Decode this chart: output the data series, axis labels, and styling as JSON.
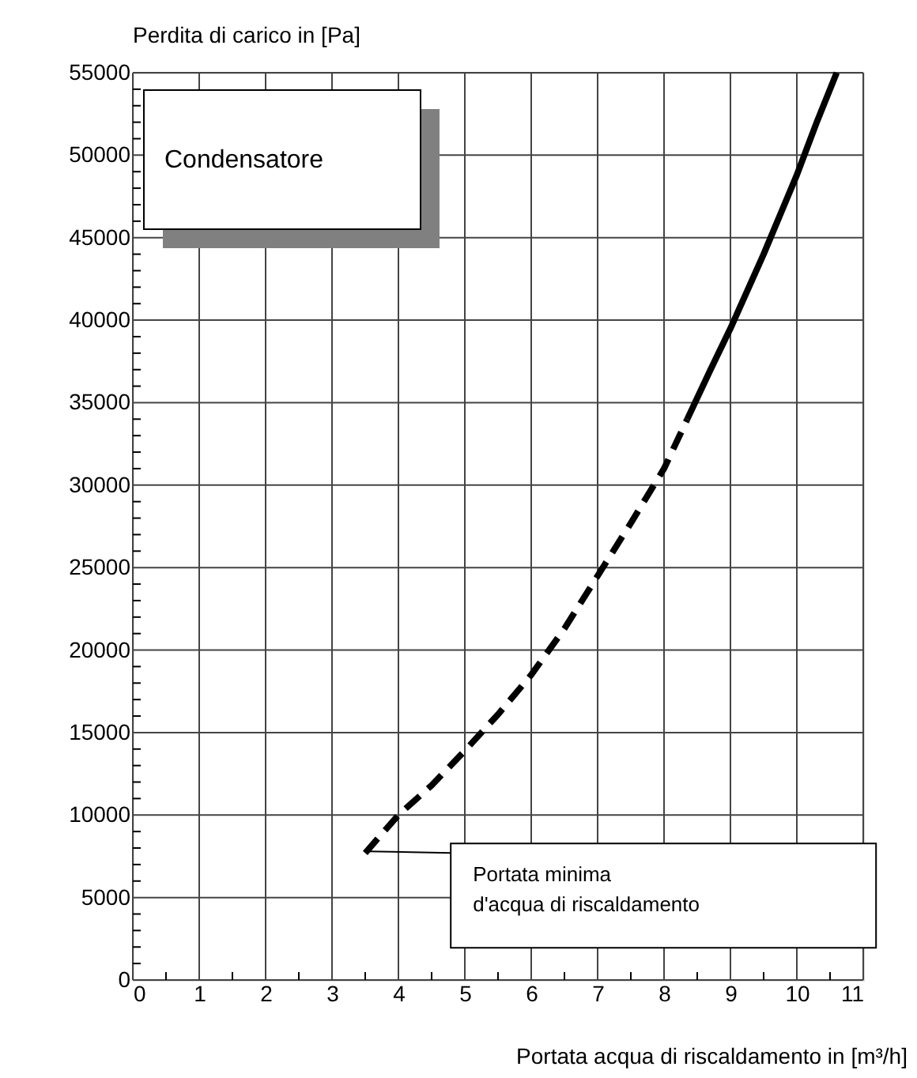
{
  "chart_data": {
    "type": "line",
    "xlabel": "Portata acqua di riscaldamento in [m³/h]",
    "ylabel": "Perdita di carico in [Pa]",
    "xlim": [
      0,
      11
    ],
    "ylim": [
      0,
      55000
    ],
    "xticks": [
      0,
      {
        "value": 0.5,
        "label": null
      },
      1,
      {
        "value": 1.5,
        "label": null
      },
      2,
      {
        "value": 2.5,
        "label": null
      },
      3,
      {
        "value": 3.5,
        "label": null
      },
      4,
      {
        "value": 4.5,
        "label": null
      },
      5,
      {
        "value": 5.5,
        "label": null
      },
      6,
      {
        "value": 6.5,
        "label": null
      },
      7,
      {
        "value": 7.5,
        "label": null
      },
      8,
      {
        "value": 8.5,
        "label": null
      },
      9,
      {
        "value": 9.5,
        "label": null
      },
      10,
      {
        "value": 10.5,
        "label": null
      },
      11
    ],
    "yticks": [
      0,
      {
        "value": 1000,
        "label": null
      },
      {
        "value": 2000,
        "label": null
      },
      {
        "value": 3000,
        "label": null
      },
      {
        "value": 4000,
        "label": null
      },
      5000,
      {
        "value": 6000,
        "label": null
      },
      {
        "value": 7000,
        "label": null
      },
      {
        "value": 8000,
        "label": null
      },
      {
        "value": 9000,
        "label": null
      },
      10000,
      {
        "value": 11000,
        "label": null
      },
      {
        "value": 12000,
        "label": null
      },
      {
        "value": 13000,
        "label": null
      },
      {
        "value": 14000,
        "label": null
      },
      15000,
      {
        "value": 16000,
        "label": null
      },
      {
        "value": 17000,
        "label": null
      },
      {
        "value": 18000,
        "label": null
      },
      {
        "value": 19000,
        "label": null
      },
      20000,
      {
        "value": 21000,
        "label": null
      },
      {
        "value": 22000,
        "label": null
      },
      {
        "value": 23000,
        "label": null
      },
      {
        "value": 24000,
        "label": null
      },
      25000,
      {
        "value": 26000,
        "label": null
      },
      {
        "value": 27000,
        "label": null
      },
      {
        "value": 28000,
        "label": null
      },
      {
        "value": 29000,
        "label": null
      },
      30000,
      {
        "value": 31000,
        "label": null
      },
      {
        "value": 32000,
        "label": null
      },
      {
        "value": 33000,
        "label": null
      },
      {
        "value": 34000,
        "label": null
      },
      35000,
      {
        "value": 36000,
        "label": null
      },
      {
        "value": 37000,
        "label": null
      },
      {
        "value": 38000,
        "label": null
      },
      {
        "value": 39000,
        "label": null
      },
      40000,
      {
        "value": 41000,
        "label": null
      },
      {
        "value": 42000,
        "label": null
      },
      {
        "value": 43000,
        "label": null
      },
      {
        "value": 44000,
        "label": null
      },
      45000,
      {
        "value": 46000,
        "label": null
      },
      {
        "value": 47000,
        "label": null
      },
      {
        "value": 48000,
        "label": null
      },
      {
        "value": 49000,
        "label": null
      },
      50000,
      {
        "value": 51000,
        "label": null
      },
      {
        "value": 52000,
        "label": null
      },
      {
        "value": 53000,
        "label": null
      },
      {
        "value": 54000,
        "label": null
      },
      55000
    ],
    "grid": true,
    "marker": "none",
    "series": [
      {
        "color": "#000000",
        "line_style": "dashed",
        "x": [
          3.5,
          4,
          4.5,
          5,
          5.5,
          6,
          6.5,
          7,
          7.5,
          8,
          8.35
        ],
        "values": [
          7700,
          10000,
          11800,
          13900,
          16100,
          18500,
          21300,
          24500,
          27700,
          31000,
          34000
        ]
      },
      {
        "color": "#000000",
        "line_style": "solid",
        "x": [
          8.35,
          8.7,
          9,
          9.5,
          10,
          10.3,
          10.6
        ],
        "values": [
          34000,
          37000,
          39500,
          44000,
          48800,
          52000,
          55000
        ]
      }
    ],
    "title": "Condensatore",
    "annotations": [
      {
        "text": "Portata minima\nd'acqua di riscaldamento",
        "x": 3.55,
        "y": 7800
      }
    ]
  }
}
